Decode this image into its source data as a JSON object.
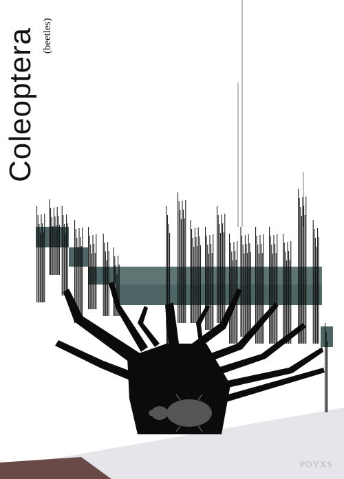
{
  "title": "Coleoptera",
  "subtitle": "(beetles)",
  "signature": "PDYXS",
  "colors": {
    "background": "#ffffff",
    "tree": "#0b0b0b",
    "band": "#4d6564",
    "beetle": "#555555",
    "floor": "#e6e6ea",
    "floor_corner": "#6a4a47"
  }
}
